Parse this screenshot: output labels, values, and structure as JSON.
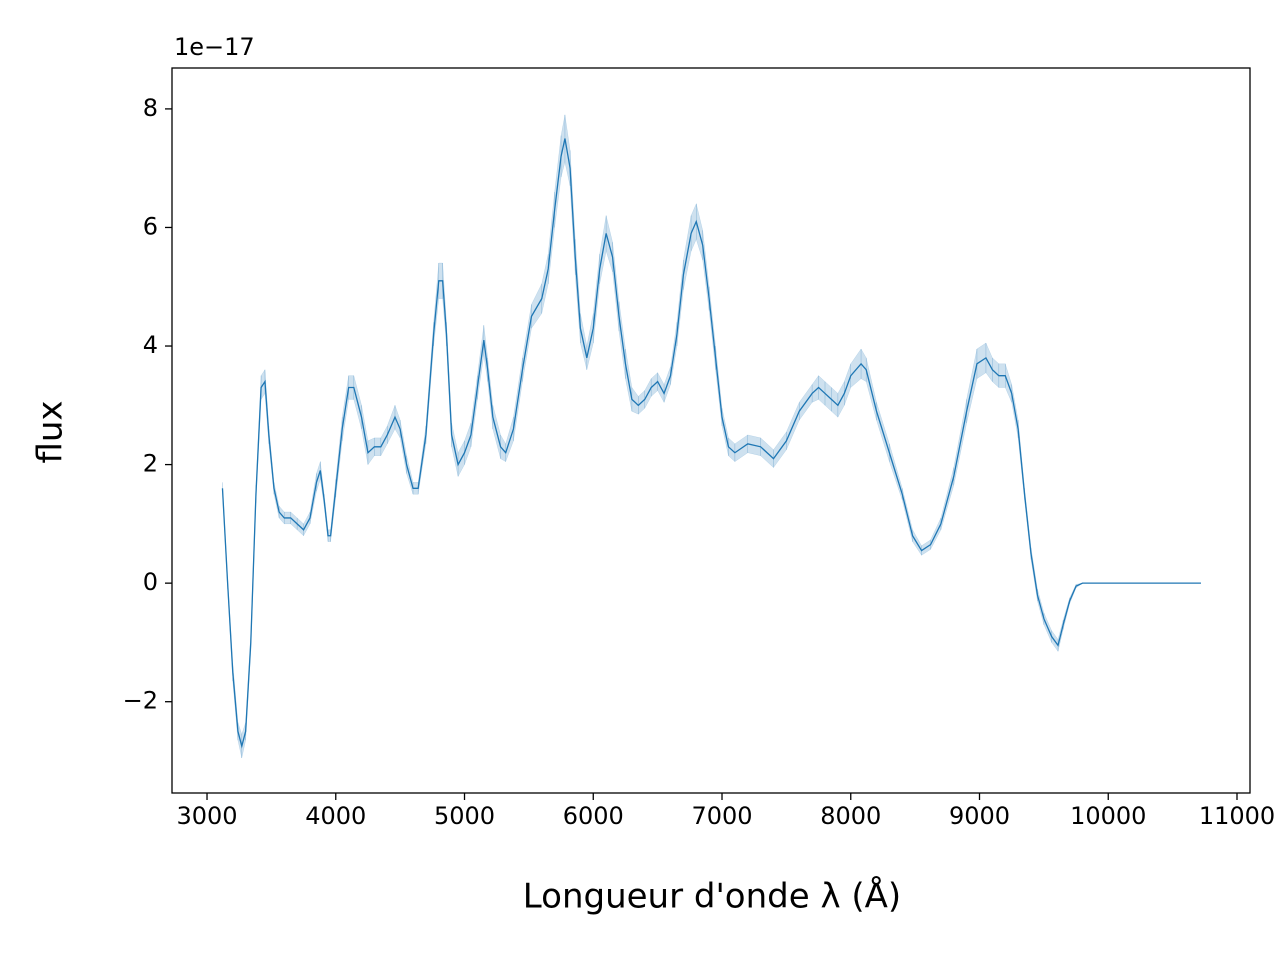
{
  "chart_data": {
    "type": "line",
    "xlabel": "Longueur d'onde λ (Å)",
    "ylabel": "flux",
    "offset_label": "1e−17",
    "xlim": [
      2728,
      11101
    ],
    "ylim": [
      -3.54,
      8.69
    ],
    "xticks": [
      3000,
      4000,
      5000,
      6000,
      7000,
      8000,
      9000,
      10000,
      11000
    ],
    "yticks": [
      {
        "value": -2,
        "label": "−2"
      },
      0,
      2,
      4,
      6,
      8
    ],
    "grid": false,
    "series": [
      {
        "color": "#1f77b4",
        "x": [
          3120,
          3160,
          3200,
          3240,
          3270,
          3300,
          3340,
          3380,
          3420,
          3450,
          3480,
          3520,
          3560,
          3600,
          3650,
          3700,
          3750,
          3800,
          3850,
          3880,
          3910,
          3940,
          3960,
          4000,
          4050,
          4100,
          4140,
          4200,
          4250,
          4300,
          4350,
          4400,
          4460,
          4500,
          4550,
          4600,
          4640,
          4700,
          4760,
          4800,
          4830,
          4860,
          4900,
          4950,
          5000,
          5050,
          5100,
          5150,
          5180,
          5220,
          5280,
          5320,
          5380,
          5450,
          5520,
          5600,
          5650,
          5700,
          5750,
          5780,
          5820,
          5860,
          5900,
          5950,
          6000,
          6050,
          6100,
          6150,
          6200,
          6250,
          6300,
          6350,
          6400,
          6450,
          6500,
          6550,
          6600,
          6650,
          6700,
          6760,
          6800,
          6850,
          6900,
          6950,
          7000,
          7050,
          7100,
          7200,
          7300,
          7400,
          7500,
          7600,
          7700,
          7750,
          7800,
          7850,
          7900,
          7950,
          8000,
          8080,
          8120,
          8200,
          8300,
          8400,
          8480,
          8550,
          8620,
          8700,
          8800,
          8900,
          8980,
          9050,
          9100,
          9150,
          9200,
          9250,
          9300,
          9350,
          9400,
          9450,
          9500,
          9560,
          9610,
          9650,
          9700,
          9750,
          9800,
          10000,
          10720
        ],
        "values": [
          1.6,
          0.0,
          -1.5,
          -2.5,
          -2.75,
          -2.5,
          -1.0,
          1.5,
          3.3,
          3.4,
          2.5,
          1.6,
          1.2,
          1.1,
          1.1,
          1.0,
          0.9,
          1.1,
          1.7,
          1.9,
          1.4,
          0.8,
          0.8,
          1.6,
          2.6,
          3.3,
          3.3,
          2.8,
          2.2,
          2.3,
          2.3,
          2.5,
          2.8,
          2.6,
          2.0,
          1.6,
          1.6,
          2.5,
          4.2,
          5.1,
          5.1,
          4.2,
          2.5,
          2.0,
          2.2,
          2.5,
          3.3,
          4.1,
          3.6,
          2.8,
          2.3,
          2.2,
          2.6,
          3.6,
          4.5,
          4.8,
          5.3,
          6.3,
          7.2,
          7.5,
          7.0,
          5.5,
          4.3,
          3.8,
          4.3,
          5.3,
          5.9,
          5.5,
          4.5,
          3.7,
          3.1,
          3.0,
          3.1,
          3.3,
          3.4,
          3.2,
          3.5,
          4.2,
          5.2,
          5.9,
          6.1,
          5.7,
          4.8,
          3.8,
          2.8,
          2.3,
          2.2,
          2.35,
          2.3,
          2.1,
          2.4,
          2.9,
          3.2,
          3.3,
          3.2,
          3.1,
          3.0,
          3.2,
          3.5,
          3.7,
          3.6,
          2.9,
          2.2,
          1.5,
          0.8,
          0.55,
          0.65,
          1.0,
          1.8,
          2.9,
          3.7,
          3.8,
          3.6,
          3.5,
          3.5,
          3.2,
          2.6,
          1.5,
          0.5,
          -0.2,
          -0.6,
          -0.9,
          -1.05,
          -0.7,
          -0.3,
          -0.05,
          0,
          0,
          0
        ],
        "errors": [
          0.1,
          0.1,
          0.15,
          0.15,
          0.2,
          0.15,
          0.15,
          0.15,
          0.2,
          0.2,
          0.15,
          0.1,
          0.1,
          0.1,
          0.1,
          0.1,
          0.1,
          0.1,
          0.15,
          0.15,
          0.1,
          0.1,
          0.1,
          0.15,
          0.2,
          0.2,
          0.2,
          0.2,
          0.2,
          0.15,
          0.15,
          0.15,
          0.2,
          0.15,
          0.15,
          0.1,
          0.1,
          0.15,
          0.2,
          0.3,
          0.3,
          0.2,
          0.2,
          0.2,
          0.2,
          0.2,
          0.2,
          0.25,
          0.2,
          0.2,
          0.2,
          0.15,
          0.2,
          0.2,
          0.2,
          0.25,
          0.25,
          0.3,
          0.35,
          0.4,
          0.3,
          0.3,
          0.25,
          0.2,
          0.25,
          0.25,
          0.3,
          0.25,
          0.25,
          0.25,
          0.2,
          0.15,
          0.15,
          0.15,
          0.15,
          0.15,
          0.15,
          0.2,
          0.25,
          0.3,
          0.3,
          0.25,
          0.2,
          0.2,
          0.15,
          0.15,
          0.15,
          0.15,
          0.15,
          0.15,
          0.15,
          0.15,
          0.15,
          0.2,
          0.2,
          0.2,
          0.2,
          0.2,
          0.2,
          0.25,
          0.2,
          0.15,
          0.15,
          0.1,
          0.1,
          0.08,
          0.08,
          0.1,
          0.15,
          0.2,
          0.25,
          0.25,
          0.2,
          0.2,
          0.2,
          0.15,
          0.15,
          0.1,
          0.1,
          0.1,
          0.1,
          0.1,
          0.1,
          0.08,
          0.05,
          0.03,
          0,
          0,
          0
        ]
      }
    ]
  }
}
